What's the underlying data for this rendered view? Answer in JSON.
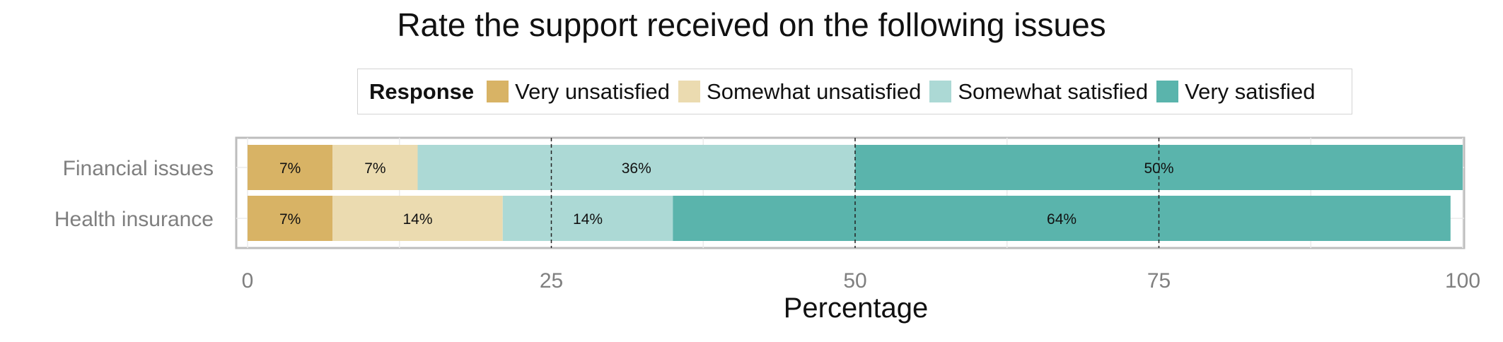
{
  "chart_data": {
    "type": "bar",
    "orientation": "horizontal",
    "stacked": true,
    "title": "Rate the support received on the following issues",
    "xlabel": "Percentage",
    "ylabel": "",
    "xlim": [
      0,
      100
    ],
    "xticks": [
      0,
      25,
      50,
      75,
      100
    ],
    "grid": true,
    "legend": {
      "title": "Response",
      "placement": "top"
    },
    "categories": [
      "Financial issues",
      "Health insurance"
    ],
    "series": [
      {
        "name": "Very unsatisfied",
        "color": "#d8b365",
        "values": [
          7,
          7
        ],
        "labels": [
          "7%",
          "7%"
        ]
      },
      {
        "name": "Somewhat unsatisfied",
        "color": "#ebdbb0",
        "values": [
          7,
          14
        ],
        "labels": [
          "7%",
          "14%"
        ]
      },
      {
        "name": "Somewhat satisfied",
        "color": "#acd9d5",
        "values": [
          36,
          14
        ],
        "labels": [
          "36%",
          "14%"
        ]
      },
      {
        "name": "Very satisfied",
        "color": "#5ab4ac",
        "values": [
          50,
          64
        ],
        "labels": [
          "50%",
          "64%"
        ]
      }
    ]
  }
}
